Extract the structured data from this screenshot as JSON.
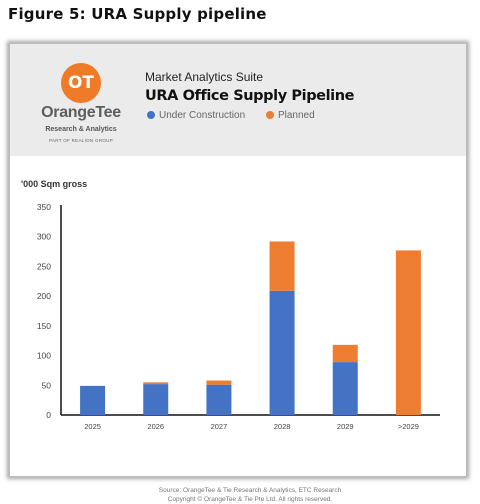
{
  "figure_title": "Figure 5: URA Supply pipeline",
  "logo": {
    "mark": "OT",
    "name": "OrangeTee",
    "division": "Research & Analytics",
    "group": "PART OF REALION GROUP"
  },
  "suite": "Market Analytics Suite",
  "colors": {
    "under_construction": "#4472c4",
    "planned": "#ed7d31",
    "header_bg": "#ebebeb",
    "logo": "#ef7a28"
  },
  "source_lines": [
    "Source: OrangeTee & Tie Research & Analytics, ETC Research",
    "Copyright © OrangeTee & Tie Pte Ltd. All rights reserved."
  ],
  "chart_data": {
    "type": "bar",
    "stacked": true,
    "title": "URA Office Supply Pipeline",
    "ylabel": "'000 Sqm gross",
    "xlabel": "",
    "categories": [
      "2025",
      "2026",
      "2027",
      "2028",
      "2029",
      ">2029"
    ],
    "series": [
      {
        "name": "Under Construction",
        "color": "#4472c4",
        "values": [
          49,
          52,
          51,
          209,
          89,
          0
        ]
      },
      {
        "name": "Planned",
        "color": "#ed7d31",
        "values": [
          0,
          3,
          7,
          83,
          29,
          277
        ]
      }
    ],
    "ylim": [
      0,
      350
    ],
    "yticks": [
      0,
      50,
      100,
      150,
      200,
      250,
      300,
      350
    ],
    "grid": false,
    "legend": "top-left"
  }
}
